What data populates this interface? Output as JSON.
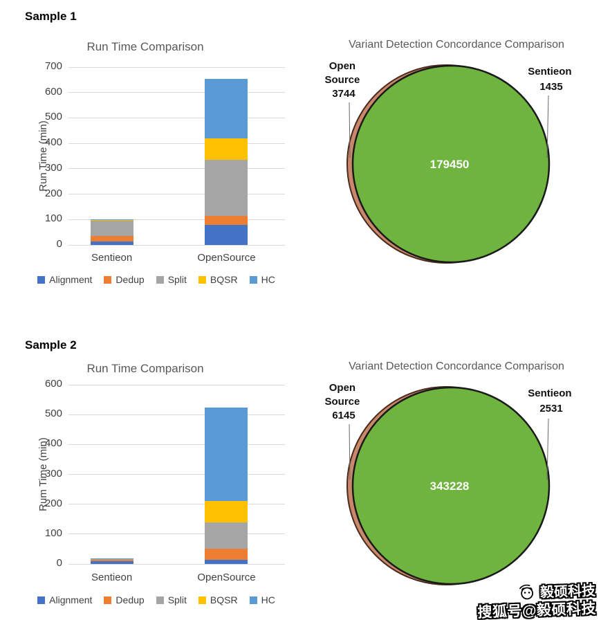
{
  "colors": {
    "grid": "#D9D9D9",
    "axis_text": "#404040",
    "title_text": "#595959",
    "overlap_text": "#FFFFFF"
  },
  "sections": [
    {
      "label": "Sample 1"
    },
    {
      "label": "Sample 2"
    }
  ],
  "chart_data": [
    {
      "type": "bar",
      "stacked": true,
      "title": "Run Time Comparison",
      "ylabel": "Run Time (min)",
      "ylim": [
        0,
        700
      ],
      "ytick": 100,
      "grid": true,
      "legend_position": "bottom",
      "categories": [
        "Sentieon",
        "OpenSource"
      ],
      "series": [
        {
          "name": "Alignment",
          "color": "#4472C4",
          "values": [
            15,
            80
          ]
        },
        {
          "name": "Dedup",
          "color": "#ED7D31",
          "values": [
            20,
            35
          ]
        },
        {
          "name": "Split",
          "color": "#A5A5A5",
          "values": [
            60,
            220
          ]
        },
        {
          "name": "BQSR",
          "color": "#FFC000",
          "values": [
            3,
            85
          ]
        },
        {
          "name": "HC",
          "color": "#5B9BD5",
          "values": [
            2,
            233
          ]
        }
      ]
    },
    {
      "type": "venn",
      "title": "Variant Detection Concordance Comparison",
      "left": {
        "name": "Open Source",
        "line1": "Open",
        "line2": "Source",
        "value": "3744",
        "fill": "#C9886C",
        "stroke": "#4A2A1B"
      },
      "right": {
        "name": "Sentieon",
        "line1": "Sentieon",
        "value": "1435",
        "fill": "#6FB43F",
        "stroke": "#1A1A1A"
      },
      "overlap": "179450",
      "overlap_color": "#FFFFFF"
    },
    {
      "type": "bar",
      "stacked": true,
      "title": "Run Time Comparison",
      "ylabel": "Rum Time (min)",
      "ylim": [
        0,
        600
      ],
      "ytick": 100,
      "grid": true,
      "legend_position": "bottom",
      "categories": [
        "Sentieon",
        "OpenSource"
      ],
      "series": [
        {
          "name": "Alignment",
          "color": "#4472C4",
          "values": [
            10,
            15
          ]
        },
        {
          "name": "Dedup",
          "color": "#ED7D31",
          "values": [
            3,
            35
          ]
        },
        {
          "name": "Split",
          "color": "#A5A5A5",
          "values": [
            4,
            90
          ]
        },
        {
          "name": "BQSR",
          "color": "#FFC000",
          "values": [
            1,
            70
          ]
        },
        {
          "name": "HC",
          "color": "#5B9BD5",
          "values": [
            1,
            313
          ]
        }
      ]
    },
    {
      "type": "venn",
      "title": "Variant Detection Concordance Comparison",
      "left": {
        "name": "Open Source",
        "line1": "Open",
        "line2": "Source",
        "value": "6145",
        "fill": "#C9886C",
        "stroke": "#4A2A1B"
      },
      "right": {
        "name": "Sentieon",
        "line1": "Sentieon",
        "value": "2531",
        "fill": "#6FB43F",
        "stroke": "#1A1A1A"
      },
      "overlap": "343228",
      "overlap_color": "#FFFFFF"
    }
  ],
  "watermark": {
    "brand": "毅硕科技",
    "account": "搜狐号@毅硕科技"
  }
}
